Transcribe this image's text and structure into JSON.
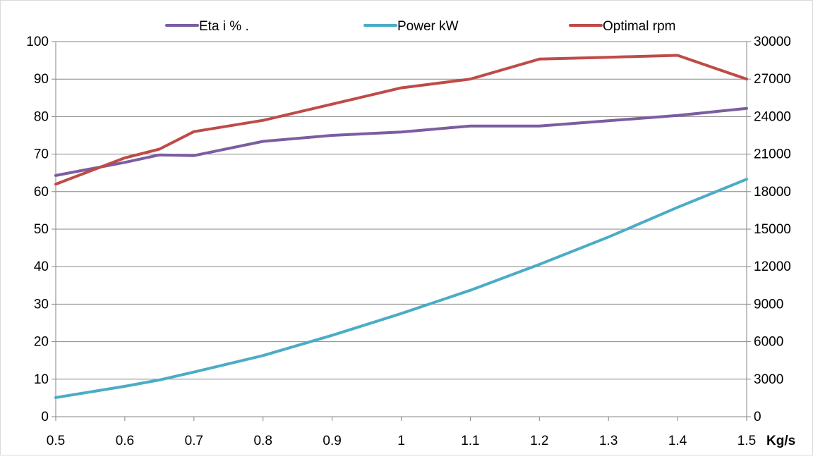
{
  "chart_data": {
    "type": "line",
    "x": [
      0.5,
      0.6,
      0.65,
      0.7,
      0.8,
      0.9,
      1,
      1.1,
      1.2,
      1.3,
      1.4,
      1.5
    ],
    "x_ticks": [
      0.5,
      0.6,
      0.7,
      0.8,
      0.9,
      1,
      1.1,
      1.2,
      1.3,
      1.4,
      1.5
    ],
    "x_tick_labels": [
      "0.5",
      "0.6",
      "0.7",
      "0.8",
      "0.9",
      "1",
      "1.1",
      "1.2",
      "1.3",
      "1.4",
      "1.5"
    ],
    "xlabel": "Kg/s",
    "xlim": [
      0.5,
      1.5
    ],
    "ylim_left": [
      0,
      100
    ],
    "y_left_ticks": [
      0,
      10,
      20,
      30,
      40,
      50,
      60,
      70,
      80,
      90,
      100
    ],
    "ylim_right": [
      0,
      30000
    ],
    "y_right_ticks": [
      0,
      3000,
      6000,
      9000,
      12000,
      15000,
      18000,
      21000,
      24000,
      27000,
      30000
    ],
    "grid": true,
    "legend_position": "top",
    "series": [
      {
        "name": "Eta i % .",
        "axis": "left",
        "color": "#7b5da1",
        "values": [
          64.3,
          67.8,
          69.8,
          69.6,
          73.4,
          75.0,
          75.9,
          77.5,
          77.5,
          78.9,
          80.3,
          82.2
        ]
      },
      {
        "name": "Power kW",
        "axis": "left",
        "color": "#4bacc6",
        "values": [
          5.1,
          8.1,
          9.8,
          11.9,
          16.3,
          21.7,
          27.5,
          33.7,
          40.6,
          47.9,
          55.8,
          63.3
        ]
      },
      {
        "name": "Optimal rpm",
        "axis": "right",
        "color": "#be4b48",
        "values": [
          18600,
          20700,
          21400,
          22800,
          23700,
          25000,
          26300,
          27000,
          28600,
          28750,
          28900,
          27000
        ]
      }
    ]
  }
}
